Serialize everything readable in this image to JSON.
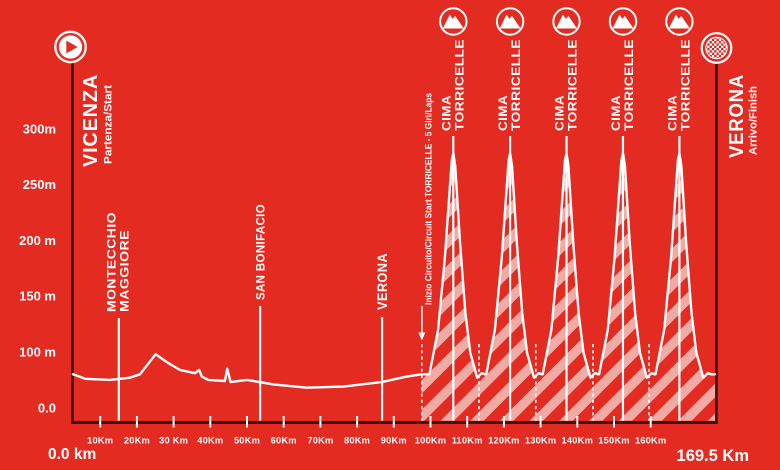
{
  "colors": {
    "background": "#e32b22",
    "hatch_stripe": "#f2aba4",
    "dark_line": "#42120c",
    "text": "#ffffff"
  },
  "start": {
    "name": "VICENZA",
    "sub": "Partenza/Start"
  },
  "finish": {
    "name": "VERONA",
    "sub": "Arrivo/Finish"
  },
  "axis": {
    "origin_label": "0.0 km",
    "end_label": "169.5 Km",
    "elevation_labels": [
      {
        "text": "300m",
        "m": 300
      },
      {
        "text": "250m",
        "m": 250
      },
      {
        "text": "200 m",
        "m": 200
      },
      {
        "text": "150 m",
        "m": 150
      },
      {
        "text": "100 m",
        "m": 100
      },
      {
        "text": "0.0",
        "m": 50
      }
    ],
    "km_ticks": [
      {
        "label": "10Km",
        "km": 10
      },
      {
        "label": "20Km",
        "km": 20
      },
      {
        "label": "30 Km",
        "km": 30
      },
      {
        "label": "40Km",
        "km": 40
      },
      {
        "label": "50Km",
        "km": 50
      },
      {
        "label": "60Km",
        "km": 60
      },
      {
        "label": "70Km",
        "km": 70
      },
      {
        "label": "80Km",
        "km": 80
      },
      {
        "label": "90Km",
        "km": 90
      },
      {
        "label": "100Km",
        "km": 100
      },
      {
        "label": "110Km",
        "km": 110
      },
      {
        "label": "120Km",
        "km": 120
      },
      {
        "label": "130Km",
        "km": 130
      },
      {
        "label": "140Km",
        "km": 140
      },
      {
        "label": "150Km",
        "km": 150
      },
      {
        "label": "160Km",
        "km": 160
      }
    ]
  },
  "markers": [
    {
      "id": "montecchio",
      "lines": [
        "MONTECCHIO",
        "MAGGIORE"
      ],
      "km": 12.1
    },
    {
      "id": "san-bonifacio",
      "lines": [
        "SAN BONIFACIO"
      ],
      "km": 49.4
    },
    {
      "id": "verona-mid",
      "lines": [
        "VERONA"
      ],
      "km": 81.6
    }
  ],
  "circuit": {
    "label": "Inizio Circuito/Circuit Start TORRICELLE - 5 Giri/Laps",
    "start_km": 92.1,
    "laps": 5,
    "lap_start_kms": [
      92.1,
      107.2,
      122.2,
      137.3,
      152.1
    ]
  },
  "peaks": {
    "label_lines": [
      "CIMA",
      "TORRICELLE"
    ],
    "kms": [
      100.4,
      115.4,
      130.3,
      145.2,
      160.1
    ],
    "summit_m": 278
  },
  "chart_data": {
    "type": "area",
    "title": "Vicenza - Verona elevation profile, 169.5 Km, finishing circuit with 5 laps over Cima Torricelle",
    "xlabel": "Km",
    "ylabel": "m",
    "xlim": [
      0,
      169.5
    ],
    "ylim": [
      0,
      300
    ],
    "total_km": 169.5,
    "base_points": [
      [
        0,
        80
      ],
      [
        3.2,
        76
      ],
      [
        9.8,
        75
      ],
      [
        15,
        77
      ],
      [
        17.7,
        80
      ],
      [
        21.8,
        98
      ],
      [
        24.7,
        91
      ],
      [
        28.2,
        84
      ],
      [
        32.2,
        81
      ],
      [
        33.3,
        84
      ],
      [
        34,
        78
      ],
      [
        35.7,
        75
      ],
      [
        40.1,
        74
      ],
      [
        40.7,
        85
      ],
      [
        41.6,
        73
      ],
      [
        45.9,
        75
      ],
      [
        52.9,
        71
      ],
      [
        61.7,
        68
      ],
      [
        71.4,
        69
      ],
      [
        81.5,
        73
      ],
      [
        88.1,
        78
      ],
      [
        92.1,
        80
      ]
    ],
    "lap_shape": [
      [
        -6.3,
        80
      ],
      [
        -4.0,
        120
      ],
      [
        -2.2,
        185
      ],
      [
        -0.4,
        272
      ],
      [
        0,
        278
      ],
      [
        0.5,
        267
      ],
      [
        1.8,
        197
      ],
      [
        3.2,
        135
      ],
      [
        4.5,
        99
      ],
      [
        5.5,
        87
      ],
      [
        6.3,
        77
      ],
      [
        7.5,
        81
      ],
      [
        8.4,
        80
      ]
    ],
    "peak_kms": [
      100.4,
      115.4,
      130.3,
      145.2,
      160.1
    ],
    "end_point": [
      169.5,
      80
    ]
  }
}
